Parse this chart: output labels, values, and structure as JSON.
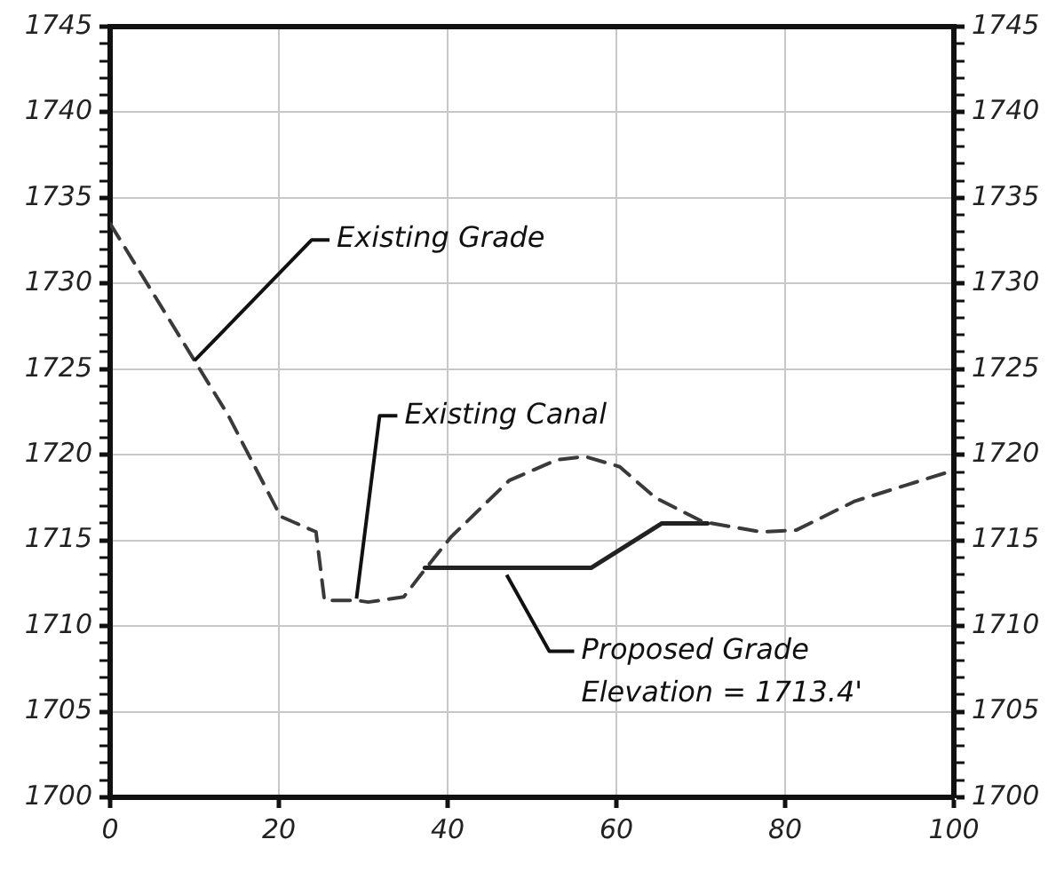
{
  "chart_data": {
    "type": "line",
    "line_style": "dashed",
    "marker": "none",
    "grid": true,
    "legend": false,
    "x": [
      0,
      10,
      14,
      20.2,
      24.4,
      25.4,
      29.2,
      30.6,
      34.8,
      37.3,
      40.4,
      47.3,
      52.9,
      56.3,
      60.4,
      64.6,
      70.2,
      77.1,
      81.3,
      88.3,
      99.4,
      100
    ],
    "series": [
      {
        "color": "#3a3a3a",
        "values": [
          1733.5,
          1725.5,
          1722.3,
          1716.4,
          1715.5,
          1711.5,
          1711.5,
          1711.4,
          1711.7,
          1713.3,
          1715.2,
          1718.5,
          1719.7,
          1719.9,
          1719.3,
          1717.5,
          1716.1,
          1715.5,
          1715.6,
          1717.3,
          1719.0,
          1719.2
        ]
      },
      {
        "color": "#222222",
        "line_style": "solid",
        "x": [
          37.3,
          57,
          65.4,
          70.8
        ],
        "values": [
          1713.4,
          1713.4,
          1716,
          1716
        ]
      }
    ],
    "xlim": [
      0,
      100
    ],
    "xticks": [
      0,
      20,
      40,
      60,
      80,
      100
    ],
    "ylim": [
      1700,
      1745
    ],
    "yticks": [
      1700,
      {
        "value": 1701,
        "label": null
      },
      {
        "value": 1702,
        "label": null
      },
      {
        "value": 1703,
        "label": null
      },
      {
        "value": 1704,
        "label": null
      },
      1705,
      {
        "value": 1706,
        "label": null
      },
      {
        "value": 1707,
        "label": null
      },
      {
        "value": 1708,
        "label": null
      },
      {
        "value": 1709,
        "label": null
      },
      1710,
      {
        "value": 1711,
        "label": null
      },
      {
        "value": 1712,
        "label": null
      },
      {
        "value": 1713,
        "label": null
      },
      {
        "value": 1714,
        "label": null
      },
      1715,
      {
        "value": 1716,
        "label": null
      },
      {
        "value": 1717,
        "label": null
      },
      {
        "value": 1718,
        "label": null
      },
      {
        "value": 1719,
        "label": null
      },
      1720,
      {
        "value": 1721,
        "label": null
      },
      {
        "value": 1722,
        "label": null
      },
      {
        "value": 1723,
        "label": null
      },
      {
        "value": 1724,
        "label": null
      },
      1725,
      {
        "value": 1726,
        "label": null
      },
      {
        "value": 1727,
        "label": null
      },
      {
        "value": 1728,
        "label": null
      },
      {
        "value": 1729,
        "label": null
      },
      1730,
      {
        "value": 1731,
        "label": null
      },
      {
        "value": 1732,
        "label": null
      },
      {
        "value": 1733,
        "label": null
      },
      {
        "value": 1734,
        "label": null
      },
      1735,
      {
        "value": 1736,
        "label": null
      },
      {
        "value": 1737,
        "label": null
      },
      {
        "value": 1738,
        "label": null
      },
      {
        "value": 1739,
        "label": null
      },
      1740,
      {
        "value": 1741,
        "label": null
      },
      {
        "value": 1742,
        "label": null
      },
      {
        "value": 1743,
        "label": null
      },
      {
        "value": 1744,
        "label": null
      },
      1745
    ],
    "y2lim": [
      1700,
      1745
    ],
    "y2ticks": [
      1700,
      {
        "value": 1701,
        "label": null
      },
      {
        "value": 1702,
        "label": null
      },
      {
        "value": 1703,
        "label": null
      },
      {
        "value": 1704,
        "label": null
      },
      1705,
      {
        "value": 1706,
        "label": null
      },
      {
        "value": 1707,
        "label": null
      },
      {
        "value": 1708,
        "label": null
      },
      {
        "value": 1709,
        "label": null
      },
      1710,
      {
        "value": 1711,
        "label": null
      },
      {
        "value": 1712,
        "label": null
      },
      {
        "value": 1713,
        "label": null
      },
      {
        "value": 1714,
        "label": null
      },
      1715,
      {
        "value": 1716,
        "label": null
      },
      {
        "value": 1717,
        "label": null
      },
      {
        "value": 1718,
        "label": null
      },
      {
        "value": 1719,
        "label": null
      },
      1720,
      {
        "value": 1721,
        "label": null
      },
      {
        "value": 1722,
        "label": null
      },
      {
        "value": 1723,
        "label": null
      },
      {
        "value": 1724,
        "label": null
      },
      1725,
      {
        "value": 1726,
        "label": null
      },
      {
        "value": 1727,
        "label": null
      },
      {
        "value": 1728,
        "label": null
      },
      {
        "value": 1729,
        "label": null
      },
      1730,
      {
        "value": 1731,
        "label": null
      },
      {
        "value": 1732,
        "label": null
      },
      {
        "value": 1733,
        "label": null
      },
      {
        "value": 1734,
        "label": null
      },
      1735,
      {
        "value": 1736,
        "label": null
      },
      {
        "value": 1737,
        "label": null
      },
      {
        "value": 1738,
        "label": null
      },
      {
        "value": 1739,
        "label": null
      },
      1740,
      {
        "value": 1741,
        "label": null
      },
      {
        "value": 1742,
        "label": null
      },
      {
        "value": 1743,
        "label": null
      },
      {
        "value": 1744,
        "label": null
      },
      1745
    ],
    "annotations": [
      {
        "text": "Existing Grade",
        "x": 10,
        "y": 1725.5
      },
      {
        "text": "Existing Canal",
        "x": 29.2,
        "y": 1711.6
      },
      {
        "text": "Proposed Grade\nElevation = 1713.4'",
        "x": 47,
        "y": 1713.4
      }
    ]
  }
}
